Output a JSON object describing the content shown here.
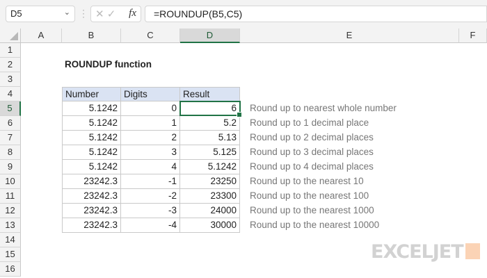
{
  "formula_bar": {
    "name_box": "D5",
    "formula": "=ROUNDUP(B5,C5)",
    "fx_label": "fx"
  },
  "columns": [
    "A",
    "B",
    "C",
    "D",
    "E",
    "F"
  ],
  "rows": [
    "1",
    "2",
    "3",
    "4",
    "5",
    "6",
    "7",
    "8",
    "9",
    "10",
    "11",
    "12",
    "13",
    "14",
    "15",
    "16"
  ],
  "selected": {
    "column": "D",
    "row": "5"
  },
  "title": "ROUNDUP function",
  "table": {
    "headers": [
      "Number",
      "Digits",
      "Result"
    ],
    "rows": [
      {
        "number": "5.1242",
        "digits": "0",
        "result": "6",
        "note": "Round up to nearest whole number"
      },
      {
        "number": "5.1242",
        "digits": "1",
        "result": "5.2",
        "note": "Round up to 1 decimal place"
      },
      {
        "number": "5.1242",
        "digits": "2",
        "result": "5.13",
        "note": "Round up to 2 decimal places"
      },
      {
        "number": "5.1242",
        "digits": "3",
        "result": "5.125",
        "note": "Round up to 3 decimal places"
      },
      {
        "number": "5.1242",
        "digits": "4",
        "result": "5.1242",
        "note": "Round up to 4 decimal places"
      },
      {
        "number": "23242.3",
        "digits": "-1",
        "result": "23250",
        "note": "Round up to the nearest 10"
      },
      {
        "number": "23242.3",
        "digits": "-2",
        "result": "23300",
        "note": "Round up to the nearest 100"
      },
      {
        "number": "23242.3",
        "digits": "-3",
        "result": "24000",
        "note": "Round up to the nearest 1000"
      },
      {
        "number": "23242.3",
        "digits": "-4",
        "result": "30000",
        "note": "Round up to the nearest 10000"
      }
    ]
  },
  "watermark": "EXCELJET",
  "colors": {
    "accent": "#217346",
    "header_fill": "#dae3f3",
    "logo_orange": "#fbd3b5"
  }
}
